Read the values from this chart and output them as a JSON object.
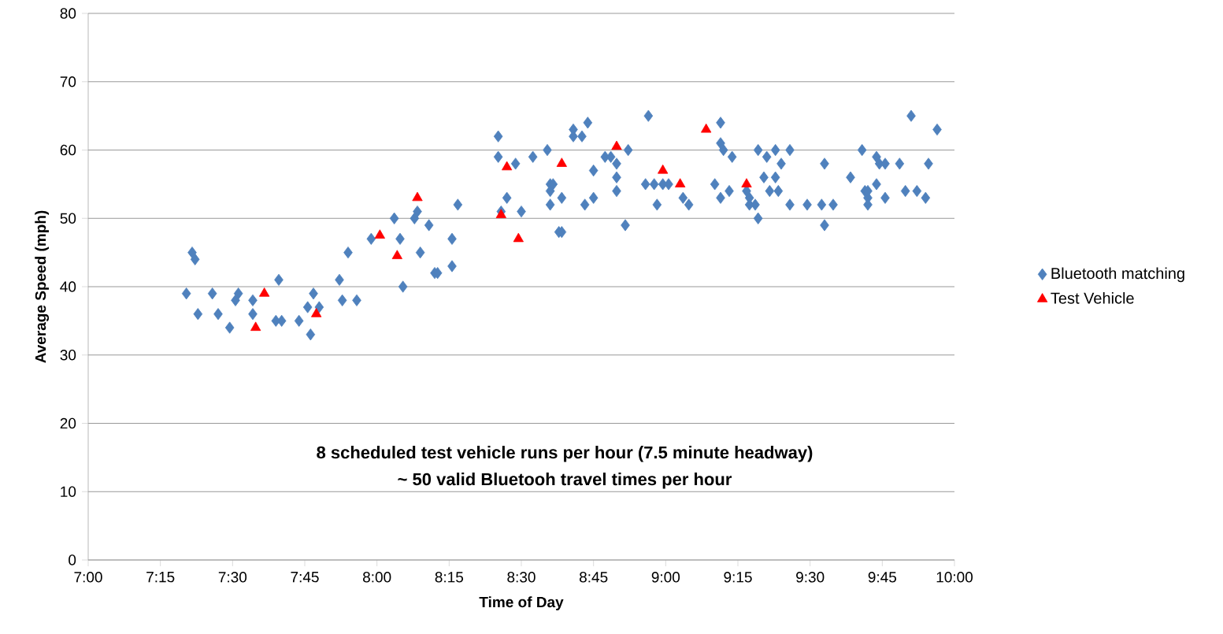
{
  "chart_data": {
    "type": "scatter",
    "xlabel": "Time of Day",
    "ylabel": "Average Speed (mph)",
    "annotations": [
      "8 scheduled test vehicle runs per hour (7.5 minute headway)",
      "~ 50 valid Bluetooh travel times per hour"
    ],
    "xlim": [
      7,
      10
    ],
    "ylim": [
      0,
      80
    ],
    "xticks": [
      {
        "value": 7,
        "label": "7:00"
      },
      {
        "value": 7.25,
        "label": "7:15"
      },
      {
        "value": 7.5,
        "label": "7:30"
      },
      {
        "value": 7.75,
        "label": "7:45"
      },
      {
        "value": 8,
        "label": "8:00"
      },
      {
        "value": 8.25,
        "label": "8:15"
      },
      {
        "value": 8.5,
        "label": "8:30"
      },
      {
        "value": 8.75,
        "label": "8:45"
      },
      {
        "value": 9,
        "label": "9:00"
      },
      {
        "value": 9.25,
        "label": "9:15"
      },
      {
        "value": 9.5,
        "label": "9:30"
      },
      {
        "value": 9.75,
        "label": "9:45"
      },
      {
        "value": 10,
        "label": "10:00"
      }
    ],
    "yticks": [
      0,
      10,
      20,
      30,
      40,
      50,
      60,
      70,
      80
    ],
    "grid": "y",
    "legend": "right",
    "series": [
      {
        "name": "Bluetooth matching",
        "color": "#4f81bd",
        "marker": "diamond",
        "x": [
          7.34,
          7.36,
          7.37,
          7.38,
          7.43,
          7.45,
          7.49,
          7.51,
          7.52,
          7.57,
          7.57,
          7.65,
          7.66,
          7.67,
          7.73,
          7.77,
          7.76,
          7.78,
          7.8,
          7.87,
          7.88,
          7.9,
          7.93,
          7.98,
          8.06,
          8.08,
          8.09,
          8.13,
          8.14,
          8.15,
          8.18,
          8.2,
          8.21,
          8.26,
          8.26,
          8.28,
          8.42,
          8.42,
          8.43,
          8.45,
          8.48,
          8.5,
          8.54,
          8.59,
          8.6,
          8.6,
          8.61,
          8.6,
          8.63,
          8.64,
          8.64,
          8.68,
          8.68,
          8.71,
          8.72,
          8.73,
          8.75,
          8.75,
          8.79,
          8.81,
          8.83,
          8.83,
          8.83,
          8.86,
          8.87,
          8.93,
          8.94,
          8.97,
          8.96,
          8.99,
          9.01,
          9.06,
          9.08,
          9.17,
          9.19,
          9.19,
          9.2,
          9.19,
          9.23,
          9.22,
          9.28,
          9.29,
          9.29,
          9.31,
          9.32,
          9.32,
          9.34,
          9.35,
          9.36,
          9.38,
          9.38,
          9.39,
          9.4,
          9.43,
          9.43,
          9.49,
          9.54,
          9.55,
          9.55,
          9.58,
          9.64,
          9.68,
          9.69,
          9.7,
          9.7,
          9.7,
          9.73,
          9.73,
          9.74,
          9.76,
          9.76,
          9.81,
          9.83,
          9.85,
          9.87,
          9.9,
          9.91,
          9.94
        ],
        "values": [
          39,
          45,
          44,
          36,
          39,
          36,
          34,
          38,
          39,
          36,
          38,
          35,
          41,
          35,
          35,
          33,
          37,
          39,
          37,
          41,
          38,
          45,
          38,
          47,
          50,
          47,
          40,
          50,
          51,
          45,
          49,
          42,
          42,
          43,
          47,
          52,
          62,
          59,
          51,
          53,
          58,
          51,
          59,
          60,
          55,
          52,
          55,
          54,
          48,
          48,
          53,
          62,
          63,
          62,
          52,
          64,
          57,
          53,
          59,
          59,
          58,
          56,
          54,
          49,
          60,
          55,
          65,
          52,
          55,
          55,
          55,
          53,
          52,
          55,
          64,
          61,
          60,
          53,
          59,
          54,
          54,
          53,
          52,
          52,
          50,
          60,
          56,
          59,
          54,
          56,
          60,
          54,
          58,
          60,
          52,
          52,
          52,
          58,
          49,
          52,
          56,
          60,
          54,
          53,
          52,
          54,
          59,
          55,
          58,
          53,
          58,
          58,
          54,
          65,
          54,
          53,
          58,
          63
        ]
      },
      {
        "name": "Test Vehicle",
        "color": "#ff0000",
        "marker": "triangle",
        "x": [
          7.58,
          7.61,
          7.79,
          8.01,
          8.07,
          8.14,
          8.43,
          8.45,
          8.49,
          8.64,
          8.83,
          8.99,
          9.05,
          9.14,
          9.28
        ],
        "values": [
          34,
          39,
          36,
          47.5,
          44.5,
          53,
          50.5,
          57.5,
          47,
          58,
          60.5,
          57,
          55,
          63,
          55
        ]
      }
    ]
  }
}
